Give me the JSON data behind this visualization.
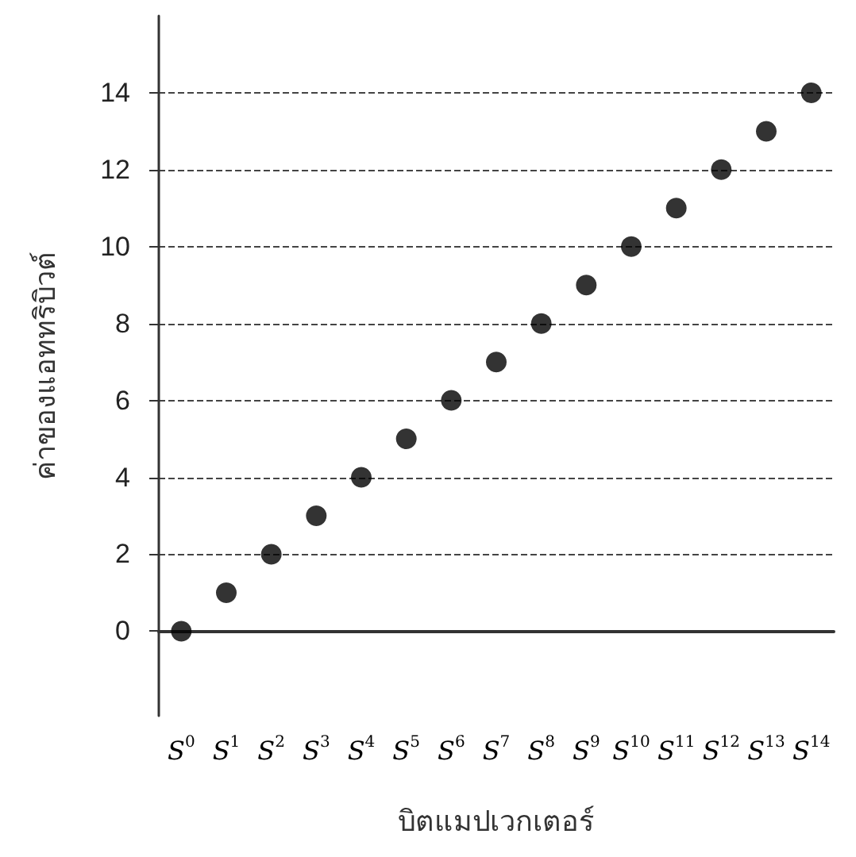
{
  "chart_data": {
    "type": "scatter",
    "xlabel": "บิตแมปเวกเตอร์",
    "ylabel": "ค่าของแอททริบิวต์",
    "categories": [
      "S$^{0}$",
      "S$^{1}$",
      "S$^{2}$",
      "S$^{3}$",
      "S$^{4}$",
      "S$^{5}$",
      "S$^{6}$",
      "S$^{7}$",
      "S$^{8}$",
      "S$^{9}$",
      "S$^{10}$",
      "S$^{11}$",
      "S$^{12}$",
      "S$^{13}$",
      "S$^{14}$"
    ],
    "series": [
      {
        "color": "#000000",
        "values": [
          0,
          1,
          2,
          3,
          4,
          5,
          6,
          7,
          8,
          9,
          10,
          11,
          12,
          13,
          14
        ]
      }
    ],
    "ylim": [
      -2.2,
      16
    ],
    "yticks": [
      0,
      2,
      4,
      6,
      8,
      10,
      12,
      14
    ],
    "grid": "y",
    "marker": "circle"
  }
}
